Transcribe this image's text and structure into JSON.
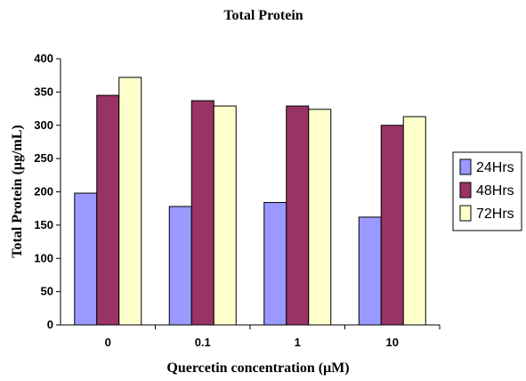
{
  "chart_data": {
    "type": "bar",
    "title": "Total Protein",
    "xlabel": "Quercetin concentration (μM)",
    "ylabel": "Total Protein (μg/mL)",
    "categories": [
      "0",
      "0.1",
      "1",
      "10"
    ],
    "ylim": [
      0,
      400
    ],
    "yticks": [
      0,
      50,
      100,
      150,
      200,
      250,
      300,
      350,
      400
    ],
    "grid": false,
    "legend_position": "right",
    "series": [
      {
        "name": "24Hrs",
        "color": "#9999ff",
        "values": [
          198,
          178,
          184,
          162
        ]
      },
      {
        "name": "48Hrs",
        "color": "#993366",
        "values": [
          345,
          337,
          329,
          300
        ]
      },
      {
        "name": "72Hrs",
        "color": "#ffffcc",
        "values": [
          372,
          329,
          324,
          313
        ]
      }
    ]
  }
}
